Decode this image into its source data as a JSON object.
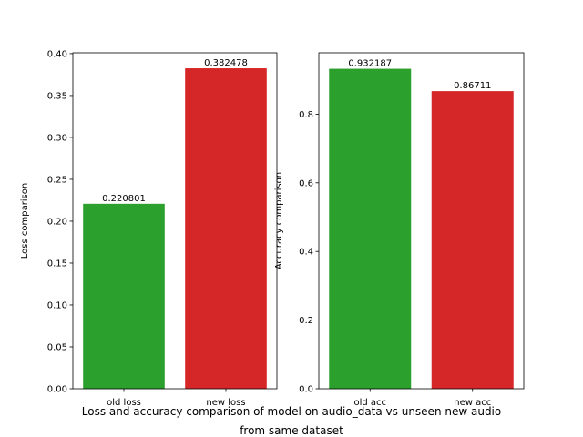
{
  "colors": {
    "green": "#2ca02c",
    "red": "#d62728",
    "axis": "#000000",
    "background": "#ffffff"
  },
  "caption": {
    "line1": "Loss and accuracy comparison of model on audio_data vs unseen new audio",
    "line2": "from same dataset"
  },
  "chart_data": [
    {
      "type": "bar",
      "categories": [
        "old loss",
        "new loss"
      ],
      "values": [
        0.220801,
        0.382478
      ],
      "value_labels": [
        "0.220801",
        "0.382478"
      ],
      "bar_colors": [
        "#2ca02c",
        "#d62728"
      ],
      "xlabel": "",
      "ylabel": "Loss comparison",
      "ylim": [
        0,
        0.401
      ],
      "yticks": [
        0.0,
        0.05,
        0.1,
        0.15,
        0.2,
        0.25,
        0.3,
        0.35,
        0.4
      ],
      "ytick_labels": [
        "0.00",
        "0.05",
        "0.10",
        "0.15",
        "0.20",
        "0.25",
        "0.30",
        "0.35",
        "0.40"
      ],
      "grid": false
    },
    {
      "type": "bar",
      "categories": [
        "old acc",
        "new acc"
      ],
      "values": [
        0.932187,
        0.86711
      ],
      "value_labels": [
        "0.932187",
        "0.86711"
      ],
      "bar_colors": [
        "#2ca02c",
        "#d62728"
      ],
      "xlabel": "",
      "ylabel": "Accuracy comparison",
      "ylim": [
        0,
        0.9788
      ],
      "yticks": [
        0.0,
        0.2,
        0.4,
        0.6,
        0.8
      ],
      "ytick_labels": [
        "0.0",
        "0.2",
        "0.4",
        "0.6",
        "0.8"
      ],
      "grid": false
    }
  ]
}
